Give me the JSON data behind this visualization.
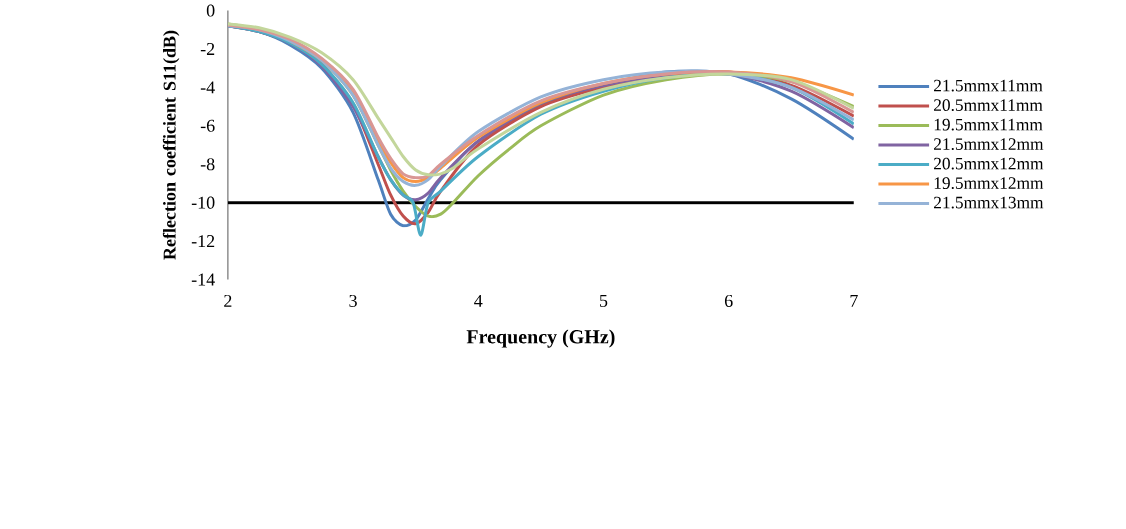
{
  "chart_data": {
    "type": "line",
    "xlabel": "Frequency (GHz)",
    "ylabel": "Reflection coefficient S11(dB)",
    "xlim": [
      2,
      7
    ],
    "ylim": [
      -14,
      0
    ],
    "xticks": [
      2,
      3,
      4,
      5,
      6,
      7
    ],
    "yticks": [
      -14,
      -12,
      -10,
      -8,
      -6,
      -4,
      -2,
      0
    ],
    "legend": "right",
    "ref_lines": [
      {
        "axis": "y",
        "value": -10,
        "color": "#000000"
      }
    ],
    "x": [
      2,
      2.25,
      2.5,
      2.75,
      3,
      3.2,
      3.3,
      3.4,
      3.5,
      3.6,
      3.7,
      4,
      4.5,
      5,
      5.5,
      6,
      6.5,
      7
    ],
    "series": [
      {
        "name": "21.5mmx11mm",
        "color": "#4f81bd",
        "values": [
          -0.8,
          -1.1,
          -1.8,
          -3.0,
          -5.3,
          -8.8,
          -10.6,
          -11.2,
          -10.9,
          -9.8,
          -8.8,
          -6.8,
          -4.9,
          -3.9,
          -3.2,
          -3.3,
          -4.6,
          -6.7
        ]
      },
      {
        "name": "20.5mmx11mm",
        "color": "#c0504d",
        "values": [
          -0.8,
          -1.1,
          -1.7,
          -2.8,
          -4.9,
          -8.0,
          -9.6,
          -10.7,
          -11.1,
          -10.5,
          -9.4,
          -7.0,
          -5.0,
          -4.0,
          -3.4,
          -3.2,
          -3.9,
          -5.5
        ]
      },
      {
        "name": "19.5mmx11mm",
        "color": "#9bbb59",
        "x": [
          2,
          2.25,
          2.5,
          2.75,
          3,
          3.2,
          3.3,
          3.4,
          3.5,
          3.6,
          3.7,
          3.8,
          4,
          4.25,
          4.5,
          5,
          5.5,
          6,
          6.5,
          7
        ],
        "values": [
          -0.7,
          -1.0,
          -1.6,
          -2.6,
          -4.4,
          -7.0,
          -8.3,
          -9.4,
          -10.2,
          -10.7,
          -10.6,
          -10.0,
          -8.6,
          -7.2,
          -6.0,
          -4.4,
          -3.6,
          -3.3,
          -3.7,
          -5.0
        ]
      },
      {
        "name": "21.5mmx12mm",
        "color": "#8064a2",
        "values": [
          -0.8,
          -1.1,
          -1.7,
          -2.9,
          -5.0,
          -7.6,
          -8.8,
          -9.6,
          -9.85,
          -9.5,
          -8.7,
          -6.8,
          -4.8,
          -3.9,
          -3.4,
          -3.3,
          -4.2,
          -6.1
        ]
      },
      {
        "name": "20.5mmx12mm",
        "color": "#4bacc6",
        "x": [
          2,
          2.25,
          2.5,
          2.75,
          3,
          3.2,
          3.3,
          3.4,
          3.48,
          3.54,
          3.6,
          3.7,
          4,
          4.5,
          5,
          5.5,
          6,
          6.5,
          7
        ],
        "values": [
          -0.8,
          -1.1,
          -1.7,
          -2.8,
          -4.8,
          -7.6,
          -8.8,
          -9.6,
          -10.0,
          -11.7,
          -10.0,
          -9.4,
          -7.6,
          -5.4,
          -4.2,
          -3.5,
          -3.3,
          -4.0,
          -5.9
        ]
      },
      {
        "name": "19.5mmx12mm",
        "color": "#f79646",
        "values": [
          null,
          null,
          -1.6,
          -2.6,
          -4.3,
          -6.8,
          -7.9,
          -8.7,
          -8.9,
          -8.7,
          -8.2,
          -6.6,
          -4.8,
          -3.8,
          -3.3,
          -3.2,
          -3.5,
          -4.4
        ]
      },
      {
        "name": "21.5mmx13mm",
        "color": "#95b3d7",
        "values": [
          -0.8,
          -1.0,
          -1.6,
          -2.6,
          -4.4,
          -7.0,
          -8.2,
          -8.9,
          -9.1,
          -8.8,
          -8.1,
          -6.3,
          -4.5,
          -3.6,
          -3.2,
          -3.3,
          -4.0,
          -5.7
        ]
      },
      {
        "color": "#d99694",
        "values": [
          -0.75,
          -1.0,
          -1.5,
          -2.5,
          -4.1,
          -6.6,
          -7.7,
          -8.5,
          -8.7,
          -8.6,
          -8.0,
          -6.5,
          -4.7,
          -3.8,
          -3.3,
          -3.2,
          -3.7,
          -5.3
        ]
      },
      {
        "color": "#c3d69b",
        "x": [
          2,
          2.25,
          2.5,
          2.75,
          3,
          3.2,
          3.3,
          3.4,
          3.5,
          3.6,
          3.7,
          3.8,
          4,
          4.5,
          5,
          5.5,
          6,
          6.5,
          7
        ],
        "values": [
          -0.7,
          -0.9,
          -1.4,
          -2.2,
          -3.6,
          -5.6,
          -6.6,
          -7.6,
          -8.3,
          -8.55,
          -8.5,
          -8.2,
          -7.2,
          -5.3,
          -4.1,
          -3.5,
          -3.3,
          -3.6,
          -5.1
        ]
      }
    ]
  }
}
